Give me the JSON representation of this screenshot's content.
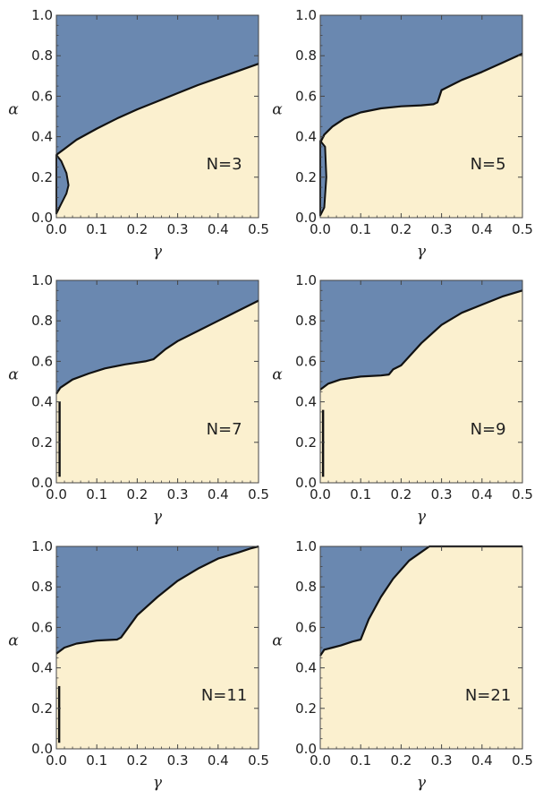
{
  "colors": {
    "region_upper": "#6a88b0",
    "region_lower": "#fbf0cf",
    "boundary": "#111111",
    "frame": "#444444"
  },
  "chart_data": [
    {
      "type": "area",
      "label": "N=3",
      "xlabel": "γ",
      "ylabel": "α",
      "xlim": [
        0,
        0.5
      ],
      "ylim": [
        0,
        1
      ],
      "xticks": [
        "0.0",
        "0.1",
        "0.2",
        "0.3",
        "0.4",
        "0.5"
      ],
      "yticks": [
        "0.0",
        "0.2",
        "0.4",
        "0.6",
        "0.8",
        "1.0"
      ],
      "upper_boundary": [
        [
          0,
          0.31
        ],
        [
          0.02,
          0.34
        ],
        [
          0.05,
          0.385
        ],
        [
          0.1,
          0.44
        ],
        [
          0.15,
          0.49
        ],
        [
          0.2,
          0.535
        ],
        [
          0.25,
          0.575
        ],
        [
          0.3,
          0.615
        ],
        [
          0.35,
          0.655
        ],
        [
          0.4,
          0.69
        ],
        [
          0.45,
          0.725
        ],
        [
          0.5,
          0.76
        ]
      ],
      "islands": [
        [
          [
            0,
            0.02
          ],
          [
            0.01,
            0.06
          ],
          [
            0.025,
            0.12
          ],
          [
            0.03,
            0.16
          ],
          [
            0.025,
            0.22
          ],
          [
            0.012,
            0.28
          ],
          [
            0,
            0.31
          ]
        ]
      ],
      "lines": []
    },
    {
      "type": "area",
      "label": "N=5",
      "xlabel": "γ",
      "ylabel": "α",
      "xlim": [
        0,
        0.5
      ],
      "ylim": [
        0,
        1
      ],
      "xticks": [
        "0.0",
        "0.1",
        "0.2",
        "0.3",
        "0.4",
        "0.5"
      ],
      "yticks": [
        "0.0",
        "0.2",
        "0.4",
        "0.6",
        "0.8",
        "1.0"
      ],
      "upper_boundary": [
        [
          0,
          0.37
        ],
        [
          0.01,
          0.41
        ],
        [
          0.03,
          0.45
        ],
        [
          0.06,
          0.49
        ],
        [
          0.1,
          0.52
        ],
        [
          0.15,
          0.54
        ],
        [
          0.2,
          0.55
        ],
        [
          0.25,
          0.555
        ],
        [
          0.28,
          0.56
        ],
        [
          0.29,
          0.57
        ],
        [
          0.3,
          0.63
        ],
        [
          0.35,
          0.68
        ],
        [
          0.4,
          0.72
        ],
        [
          0.45,
          0.765
        ],
        [
          0.5,
          0.81
        ]
      ],
      "islands": [
        [
          [
            0,
            0.01
          ],
          [
            0.01,
            0.05
          ],
          [
            0.015,
            0.2
          ],
          [
            0.012,
            0.35
          ],
          [
            0,
            0.38
          ]
        ]
      ],
      "lines": []
    },
    {
      "type": "area",
      "label": "N=7",
      "xlabel": "γ",
      "ylabel": "α",
      "xlim": [
        0,
        0.5
      ],
      "ylim": [
        0,
        1
      ],
      "xticks": [
        "0.0",
        "0.1",
        "0.2",
        "0.3",
        "0.4",
        "0.5"
      ],
      "yticks": [
        "0.0",
        "0.2",
        "0.4",
        "0.6",
        "0.8",
        "1.0"
      ],
      "upper_boundary": [
        [
          0,
          0.44
        ],
        [
          0.01,
          0.47
        ],
        [
          0.04,
          0.51
        ],
        [
          0.08,
          0.54
        ],
        [
          0.12,
          0.565
        ],
        [
          0.17,
          0.585
        ],
        [
          0.22,
          0.6
        ],
        [
          0.24,
          0.61
        ],
        [
          0.27,
          0.66
        ],
        [
          0.3,
          0.7
        ],
        [
          0.35,
          0.75
        ],
        [
          0.4,
          0.8
        ],
        [
          0.45,
          0.85
        ],
        [
          0.5,
          0.9
        ]
      ],
      "islands": [],
      "lines": [
        [
          [
            0.008,
            0.03
          ],
          [
            0.008,
            0.4
          ]
        ]
      ]
    },
    {
      "type": "area",
      "label": "N=9",
      "xlabel": "γ",
      "ylabel": "α",
      "xlim": [
        0,
        0.5
      ],
      "ylim": [
        0,
        1
      ],
      "xticks": [
        "0.0",
        "0.1",
        "0.2",
        "0.3",
        "0.4",
        "0.5"
      ],
      "yticks": [
        "0.0",
        "0.2",
        "0.4",
        "0.6",
        "0.8",
        "1.0"
      ],
      "upper_boundary": [
        [
          0,
          0.46
        ],
        [
          0.02,
          0.49
        ],
        [
          0.05,
          0.51
        ],
        [
          0.1,
          0.525
        ],
        [
          0.15,
          0.53
        ],
        [
          0.17,
          0.535
        ],
        [
          0.18,
          0.56
        ],
        [
          0.2,
          0.58
        ],
        [
          0.25,
          0.69
        ],
        [
          0.3,
          0.78
        ],
        [
          0.35,
          0.84
        ],
        [
          0.4,
          0.88
        ],
        [
          0.45,
          0.92
        ],
        [
          0.5,
          0.95
        ]
      ],
      "islands": [],
      "lines": [
        [
          [
            0.007,
            0.03
          ],
          [
            0.007,
            0.36
          ]
        ]
      ]
    },
    {
      "type": "area",
      "label": "N=11",
      "xlabel": "γ",
      "ylabel": "α",
      "xlim": [
        0,
        0.5
      ],
      "ylim": [
        0,
        1
      ],
      "xticks": [
        "0.0",
        "0.1",
        "0.2",
        "0.3",
        "0.4",
        "0.5"
      ],
      "yticks": [
        "0.0",
        "0.2",
        "0.4",
        "0.6",
        "0.8",
        "1.0"
      ],
      "upper_boundary": [
        [
          0,
          0.47
        ],
        [
          0.02,
          0.5
        ],
        [
          0.05,
          0.52
        ],
        [
          0.1,
          0.535
        ],
        [
          0.15,
          0.54
        ],
        [
          0.16,
          0.55
        ],
        [
          0.2,
          0.66
        ],
        [
          0.25,
          0.75
        ],
        [
          0.3,
          0.83
        ],
        [
          0.35,
          0.89
        ],
        [
          0.4,
          0.94
        ],
        [
          0.45,
          0.97
        ],
        [
          0.48,
          0.99
        ],
        [
          0.5,
          1.0
        ]
      ],
      "islands": [],
      "lines": [
        [
          [
            0.007,
            0.03
          ],
          [
            0.007,
            0.31
          ]
        ]
      ]
    },
    {
      "type": "area",
      "label": "N=21",
      "xlabel": "γ",
      "ylabel": "α",
      "xlim": [
        0,
        0.5
      ],
      "ylim": [
        0,
        1
      ],
      "xticks": [
        "0.0",
        "0.1",
        "0.2",
        "0.3",
        "0.4",
        "0.5"
      ],
      "yticks": [
        "0.0",
        "0.2",
        "0.4",
        "0.6",
        "0.8",
        "1.0"
      ],
      "upper_boundary": [
        [
          0,
          0.46
        ],
        [
          0.01,
          0.49
        ],
        [
          0.03,
          0.5
        ],
        [
          0.05,
          0.51
        ],
        [
          0.08,
          0.53
        ],
        [
          0.1,
          0.54
        ],
        [
          0.12,
          0.64
        ],
        [
          0.15,
          0.75
        ],
        [
          0.18,
          0.84
        ],
        [
          0.22,
          0.93
        ],
        [
          0.27,
          1.0
        ],
        [
          0.5,
          1.0
        ]
      ],
      "islands": [],
      "lines": []
    }
  ]
}
